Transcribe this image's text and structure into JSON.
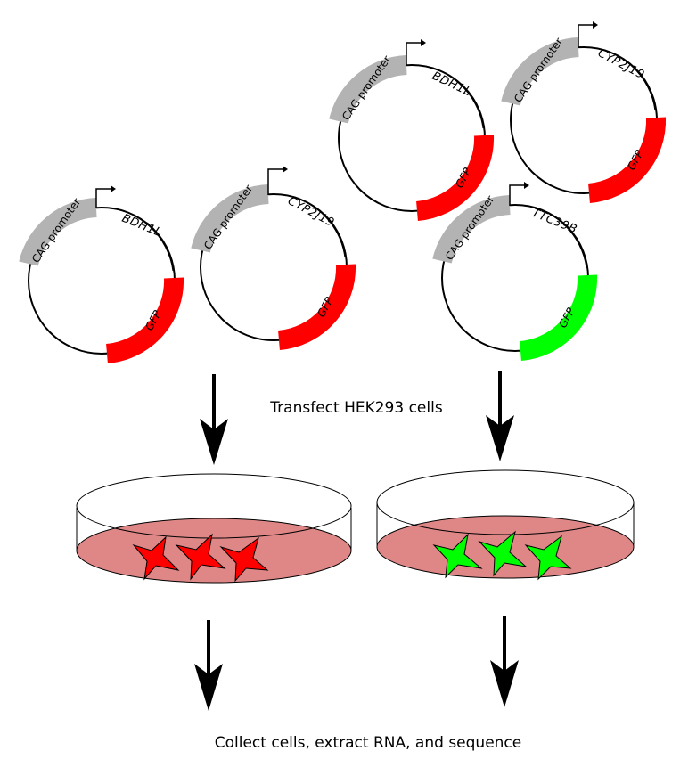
{
  "plasmids": [
    {
      "promoter": "CAG promoter",
      "gene": "BDH1L",
      "reporter": "GFP",
      "reporter_color": "#ff0000"
    },
    {
      "promoter": "CAG promoter",
      "gene": "CYP2J19",
      "reporter": "GFP",
      "reporter_color": "#ff0000"
    },
    {
      "promoter": "CAG promoter",
      "gene": "BDH1L",
      "reporter": "GFP",
      "reporter_color": "#ff0000"
    },
    {
      "promoter": "CAG promoter",
      "gene": "CYP2J19",
      "reporter": "GFP",
      "reporter_color": "#ff0000"
    },
    {
      "promoter": "CAG promoter",
      "gene": "TTC39B",
      "reporter": "GFP",
      "reporter_color": "#00ff00"
    }
  ],
  "dishes": [
    {
      "cell_color": "#ff0000",
      "medium_color": "#df8787"
    },
    {
      "cell_color": "#00ff00",
      "medium_color": "#df8787"
    }
  ],
  "steps": {
    "transfect": "Transfect HEK293 cells",
    "collect": "Collect cells, extract RNA, and sequence"
  },
  "colors": {
    "promoter": "#b3b3b3",
    "backbone": "#000000"
  }
}
